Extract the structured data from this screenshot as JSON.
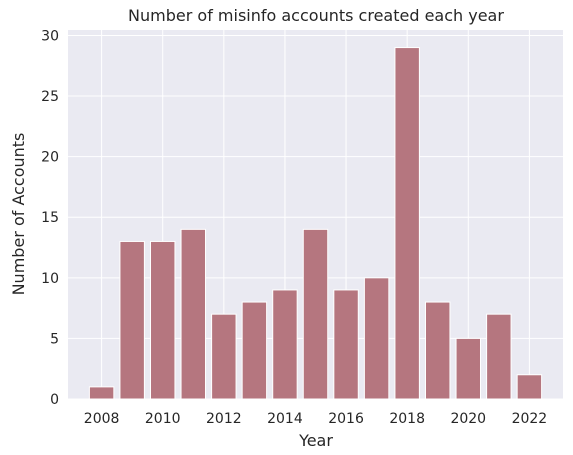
{
  "chart_data": {
    "type": "bar",
    "title": "Number of misinfo accounts created each year",
    "xlabel": "Year",
    "ylabel": "Number of Accounts",
    "categories": [
      2008,
      2009,
      2010,
      2011,
      2012,
      2013,
      2014,
      2015,
      2016,
      2017,
      2018,
      2019,
      2020,
      2021,
      2022
    ],
    "values": [
      1,
      13,
      13,
      14,
      7,
      8,
      9,
      14,
      9,
      10,
      29,
      8,
      5,
      7,
      2
    ],
    "xticks": [
      "2008",
      "2010",
      "2012",
      "2014",
      "2016",
      "2018",
      "2020",
      "2022"
    ],
    "yticks": [
      "0",
      "5",
      "10",
      "15",
      "20",
      "25",
      "30"
    ],
    "xlim": [
      2006.9,
      2023.1
    ],
    "ylim": [
      0,
      30.45
    ],
    "grid": true,
    "colors": {
      "bar": "#b5767f",
      "background": "#eaeaf2",
      "grid": "#ffffff"
    }
  }
}
